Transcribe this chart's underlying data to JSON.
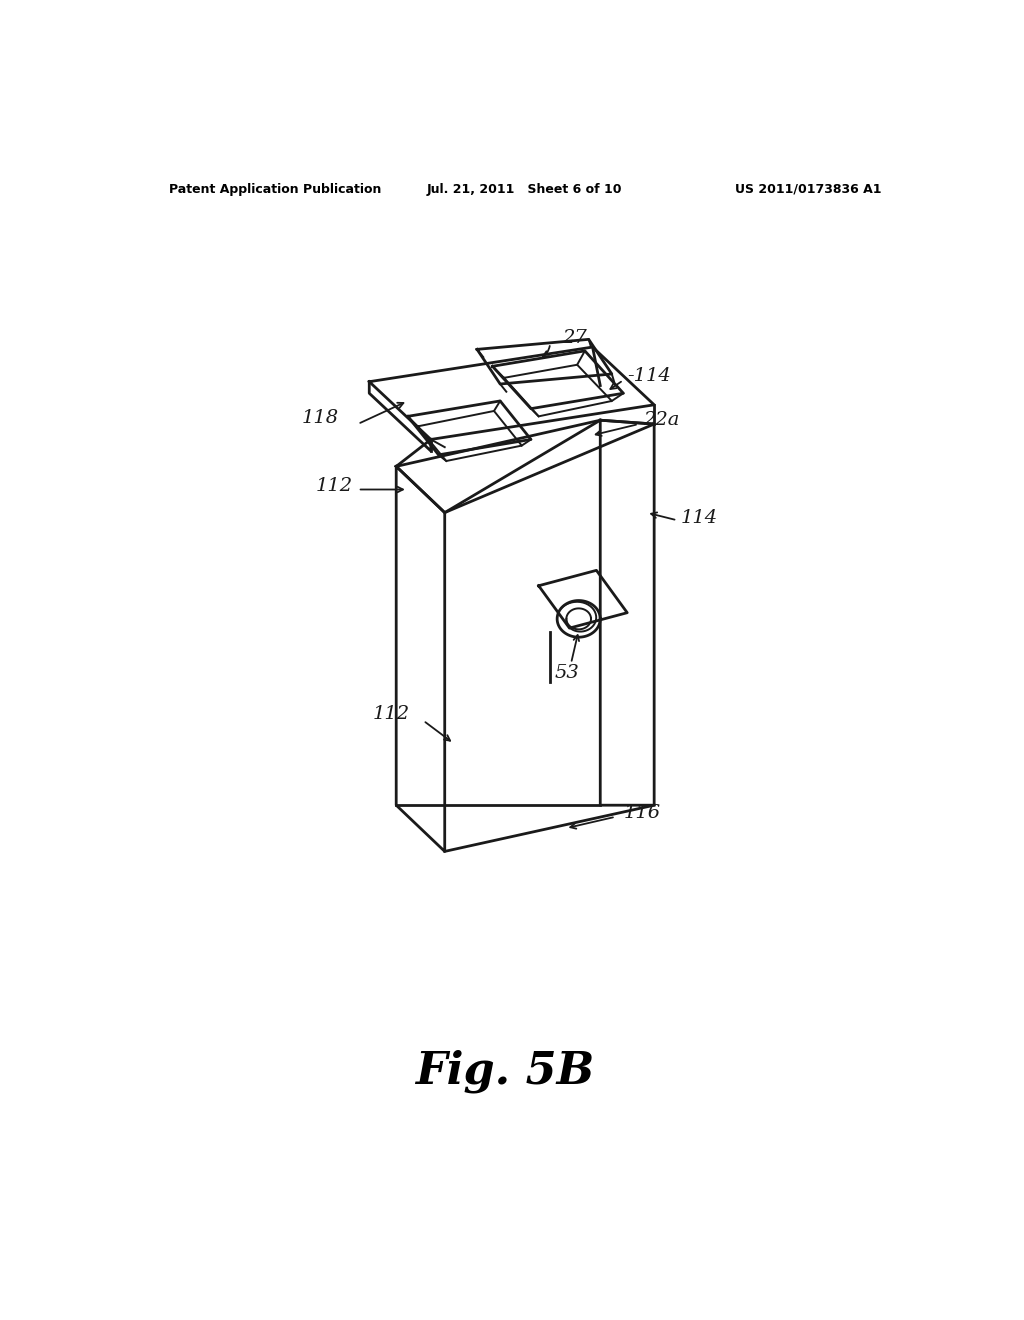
{
  "background_color": "#ffffff",
  "line_color": "#1a1a1a",
  "line_width": 2.0,
  "header_left": "Patent Application Publication",
  "header_center": "Jul. 21, 2011   Sheet 6 of 10",
  "header_right": "US 2011/0173836 A1",
  "figure_label": "Fig. 5B"
}
